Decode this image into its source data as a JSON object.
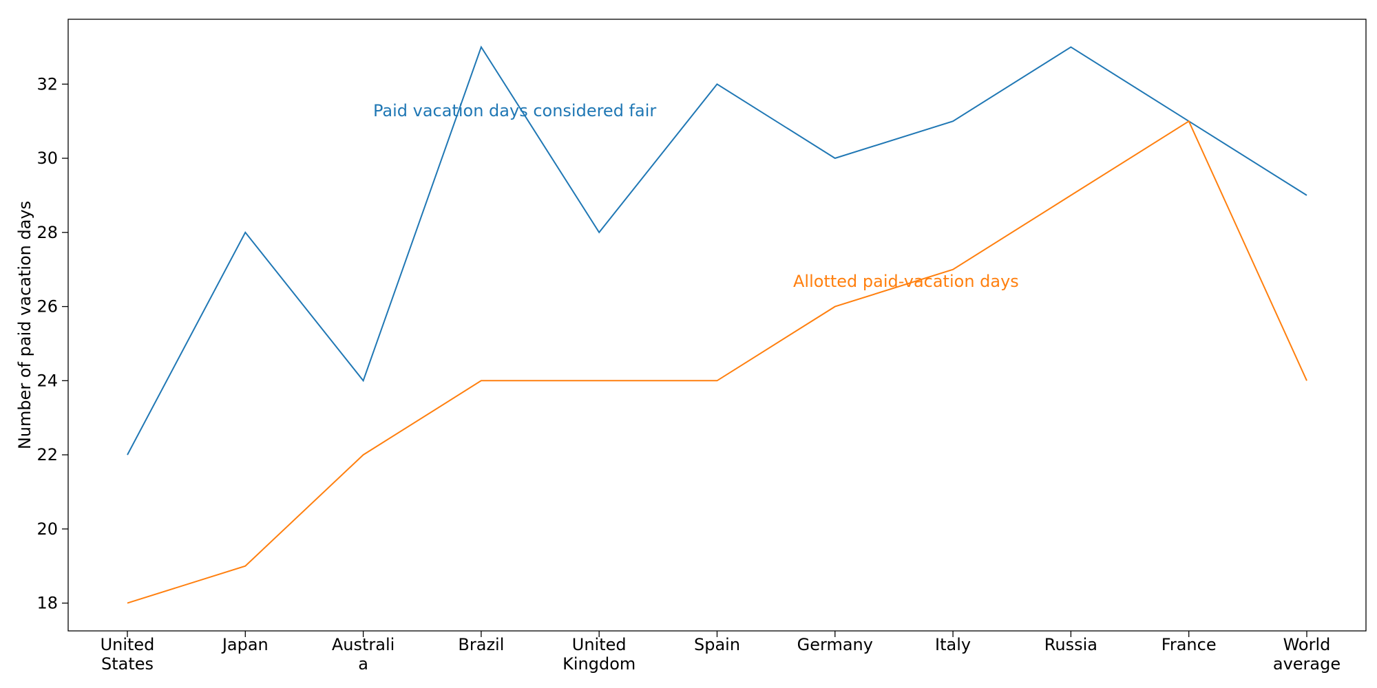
{
  "chart_data": {
    "type": "line",
    "categories": [
      [
        "United",
        "States"
      ],
      [
        "Japan"
      ],
      [
        "Australi",
        "a"
      ],
      [
        "Brazil"
      ],
      [
        "United",
        "Kingdom"
      ],
      [
        "Spain"
      ],
      [
        "Germany"
      ],
      [
        "Italy"
      ],
      [
        "Russia"
      ],
      [
        "France"
      ],
      [
        "World",
        "average"
      ]
    ],
    "series": [
      {
        "name": "Paid vacation days considered fair",
        "color": "#1f77b4",
        "values": [
          22,
          28,
          24,
          33,
          28,
          32,
          30,
          31,
          33,
          31,
          29
        ]
      },
      {
        "name": "Allotted paid-vacation days",
        "color": "#ff7f0e",
        "values": [
          18,
          19,
          22,
          24,
          24,
          24,
          26,
          27,
          29,
          31,
          24
        ]
      }
    ],
    "ylabel": "Number of paid vacation days",
    "xlabel": "",
    "ylim": [
      17.25,
      33.75
    ],
    "yticks": [
      18,
      20,
      22,
      24,
      26,
      28,
      30,
      32
    ],
    "grid": false,
    "legend": "none"
  }
}
